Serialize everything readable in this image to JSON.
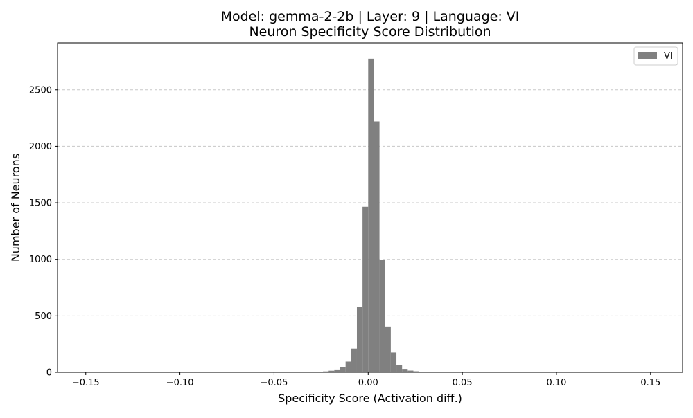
{
  "chart_data": {
    "type": "bar",
    "title": "Model: gemma-2-2b | Layer: 9 | Language: VI",
    "subtitle": "Neuron Specificity Score Distribution",
    "xlabel": "Specificity Score (Activation diff.)",
    "ylabel": "Number of Neurons",
    "xlim": [
      -0.165,
      0.167
    ],
    "ylim": [
      0,
      2915
    ],
    "x_ticks": [
      -0.15,
      -0.1,
      -0.05,
      0.0,
      0.05,
      0.1,
      0.15
    ],
    "x_tick_labels": [
      "−0.15",
      "−0.10",
      "−0.05",
      "0.00",
      "0.05",
      "0.10",
      "0.15"
    ],
    "y_ticks": [
      0,
      500,
      1000,
      1500,
      2000,
      2500
    ],
    "y_tick_labels": [
      "0",
      "500",
      "1000",
      "1500",
      "2000",
      "2500"
    ],
    "grid": "y-dashed",
    "legend_position": "top-right",
    "bar_color": "#808080",
    "bin_width": 0.003,
    "series": [
      {
        "name": "VI",
        "bins": [
          {
            "x0": -0.048,
            "count": 3
          },
          {
            "x0": -0.042,
            "count": 2
          },
          {
            "x0": -0.036,
            "count": 2
          },
          {
            "x0": -0.033,
            "count": 3
          },
          {
            "x0": -0.03,
            "count": 4
          },
          {
            "x0": -0.027,
            "count": 5
          },
          {
            "x0": -0.024,
            "count": 8
          },
          {
            "x0": -0.021,
            "count": 14
          },
          {
            "x0": -0.018,
            "count": 25
          },
          {
            "x0": -0.015,
            "count": 45
          },
          {
            "x0": -0.012,
            "count": 95
          },
          {
            "x0": -0.009,
            "count": 210
          },
          {
            "x0": -0.006,
            "count": 580
          },
          {
            "x0": -0.003,
            "count": 1465
          },
          {
            "x0": 0.0,
            "count": 2775
          },
          {
            "x0": 0.003,
            "count": 2220
          },
          {
            "x0": 0.006,
            "count": 995
          },
          {
            "x0": 0.009,
            "count": 405
          },
          {
            "x0": 0.012,
            "count": 175
          },
          {
            "x0": 0.015,
            "count": 65
          },
          {
            "x0": 0.018,
            "count": 30
          },
          {
            "x0": 0.021,
            "count": 15
          },
          {
            "x0": 0.024,
            "count": 9
          },
          {
            "x0": 0.027,
            "count": 6
          },
          {
            "x0": 0.03,
            "count": 4
          },
          {
            "x0": 0.033,
            "count": 2
          }
        ]
      }
    ]
  }
}
